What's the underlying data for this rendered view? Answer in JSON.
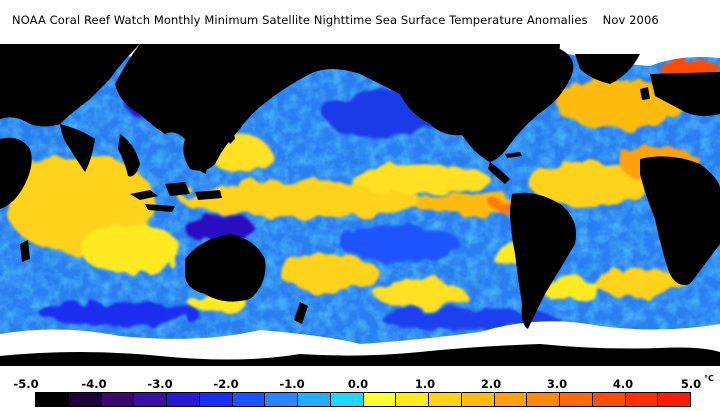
{
  "title": "NOAA Coral Reef Watch Monthly Minimum Satellite Nighttime Sea Surface Temperature Anomalies    Nov 2006",
  "colorbar": {
    "labels": [
      "-5.0",
      "-4.0",
      "-3.0",
      "-2.0",
      "-1.0",
      "0.0",
      "1.0",
      "2.0",
      "3.0",
      "4.0",
      "5.0"
    ],
    "unit": "°C",
    "colors": [
      "#000000",
      "#200038",
      "#3a0a6e",
      "#3a10a8",
      "#2818d8",
      "#1a2ef2",
      "#1a55ff",
      "#2a86ff",
      "#20b0ff",
      "#20d8ff",
      "#ffff33",
      "#ffea20",
      "#ffd21a",
      "#ffbb10",
      "#ffa00c",
      "#ff880a",
      "#ff6a08",
      "#ff4c06",
      "#ff3004",
      "#ff1a02"
    ]
  },
  "map": {
    "land_color": "#000000",
    "ice_color": "#ffffff",
    "ocean_base_color": "#2a80f0"
  }
}
